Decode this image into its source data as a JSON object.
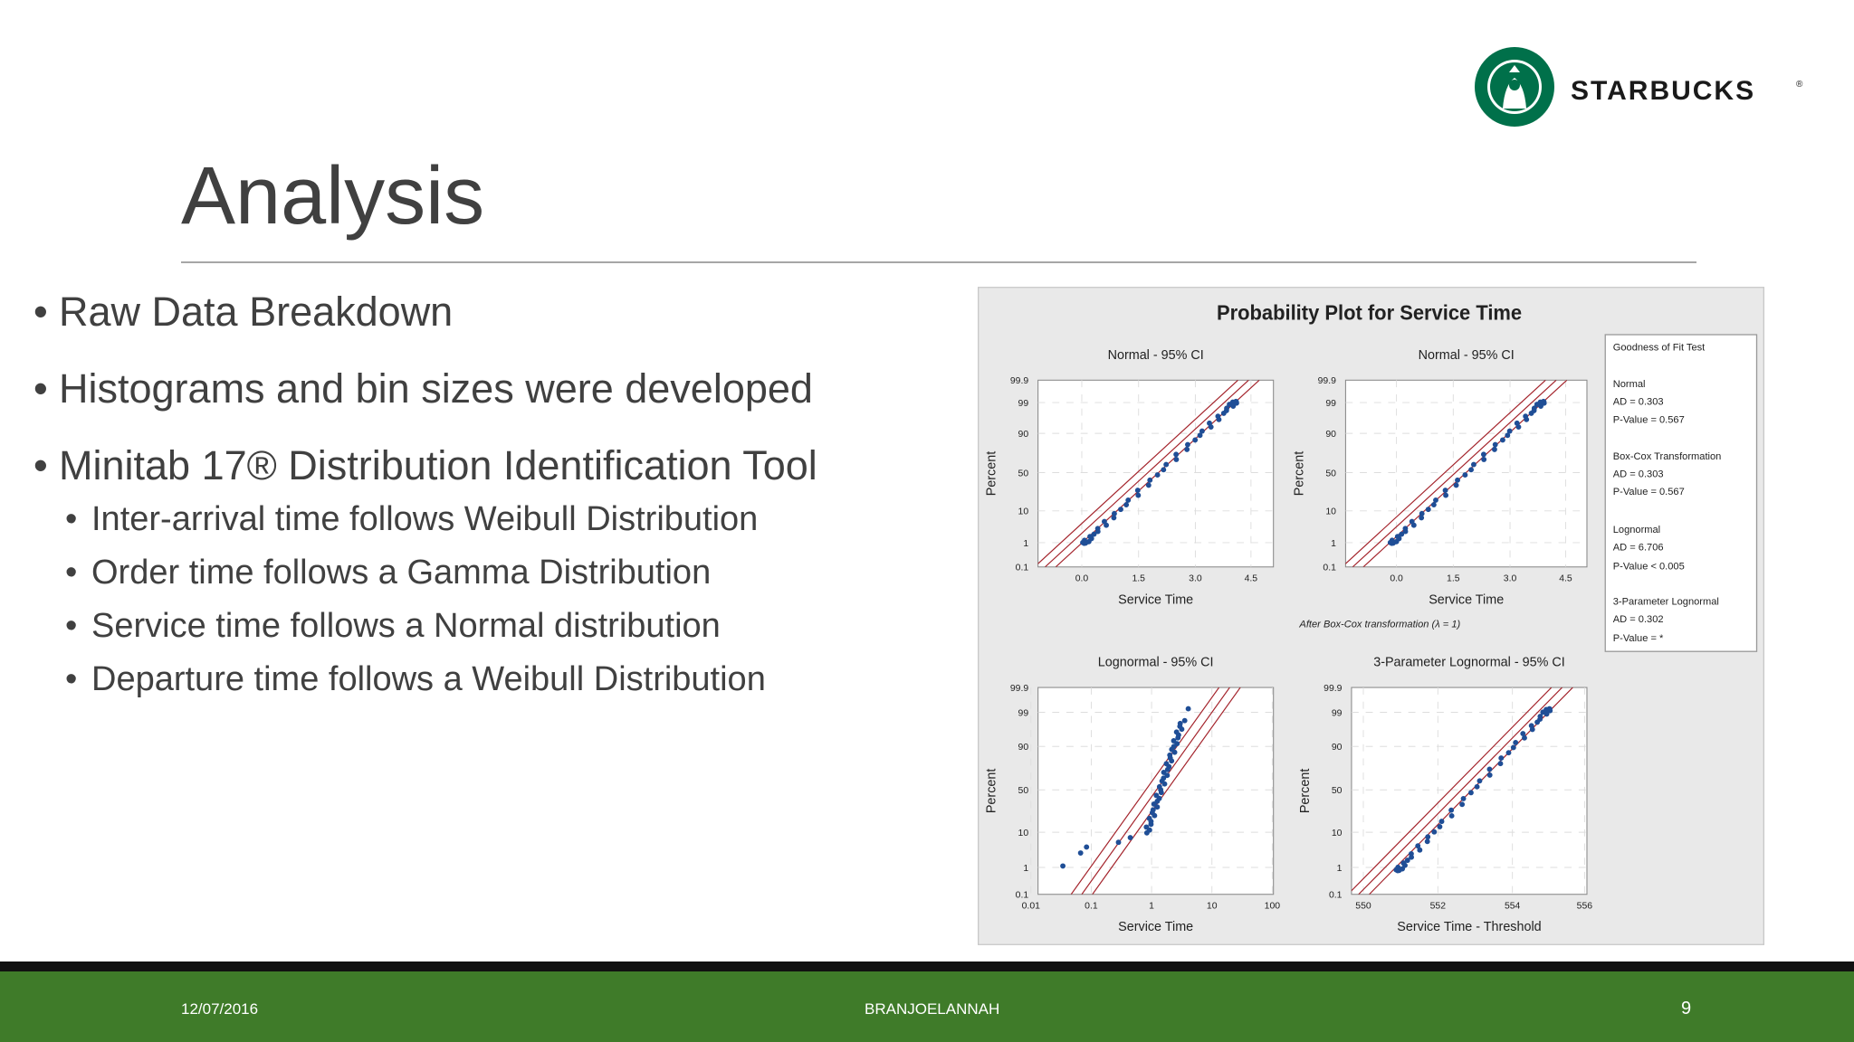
{
  "logo": {
    "text": "STARBUCKS",
    "mark": "®"
  },
  "slide": {
    "title": "Analysis",
    "bullets": [
      "Raw Data Breakdown",
      "Histograms and bin sizes were developed",
      "Minitab 17® Distribution Identification Tool"
    ],
    "subbullets": [
      "Inter-arrival time follows Weibull Distribution",
      "Order time follows a Gamma Distribution",
      "Service time follows a Normal distribution",
      "Departure time follows a Weibull Distribution"
    ]
  },
  "figure": {
    "title": "Probability Plot for Service Time",
    "panels": [
      {
        "title": "Normal - 95% CI",
        "ylabel": "Percent",
        "xlabel": "Service Time",
        "yticks": [
          "99.9",
          "99",
          "90",
          "50",
          "10",
          "1",
          "0.1"
        ],
        "xticks": [
          "0.0",
          "1.5",
          "3.0",
          "4.5"
        ]
      },
      {
        "title": "Normal - 95% CI",
        "ylabel": "Percent",
        "xlabel": "Service Time",
        "yticks": [
          "99.9",
          "99",
          "90",
          "50",
          "10",
          "1",
          "0.1"
        ],
        "xticks": [
          "0.0",
          "1.5",
          "3.0",
          "4.5"
        ]
      },
      {
        "title": "Lognormal - 95% CI",
        "ylabel": "Percent",
        "xlabel": "Service Time",
        "yticks": [
          "99.9",
          "99",
          "90",
          "50",
          "10",
          "1",
          "0.1"
        ],
        "xticks": [
          "0.01",
          "0.1",
          "1",
          "10",
          "100"
        ]
      },
      {
        "title": "3-Parameter Lognormal - 95% CI",
        "ylabel": "Percent",
        "xlabel": "Service Time - Threshold",
        "yticks": [
          "99.9",
          "99",
          "90",
          "50",
          "10",
          "1",
          "0.1"
        ],
        "xticks": [
          "550",
          "552",
          "554",
          "556"
        ]
      }
    ],
    "note": "After Box-Cox transformation (λ = 1)",
    "legend": [
      "Goodness of Fit Test",
      "Normal",
      "AD = 0.303",
      "P-Value = 0.567",
      "Box-Cox Transformation",
      "AD = 0.303",
      "P-Value = 0.567",
      "Lognormal",
      "AD = 6.706",
      "P-Value < 0.005",
      "3-Parameter Lognormal",
      "AD = 0.302",
      "P-Value = *"
    ]
  },
  "footer": {
    "date": "12/07/2016",
    "author": "BRANJOELANNAH",
    "page": "9"
  }
}
